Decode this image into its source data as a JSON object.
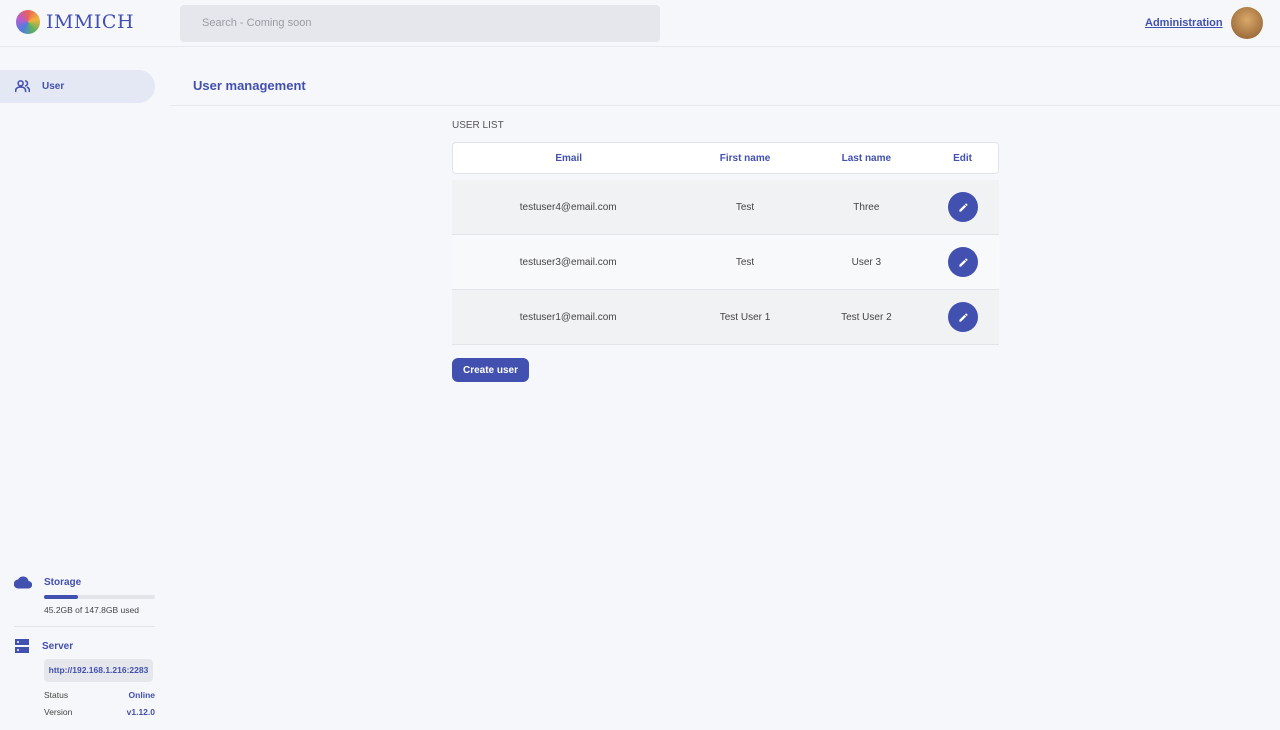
{
  "header": {
    "logo_text": "IMMICH",
    "search_placeholder": "Search - Coming soon",
    "admin_link": "Administration"
  },
  "sidebar": {
    "items": [
      {
        "label": "User",
        "icon": "users-icon"
      }
    ],
    "storage": {
      "title": "Storage",
      "usage_text": "45.2GB of 147.8GB used",
      "used_fraction": 0.306
    },
    "server": {
      "title": "Server",
      "url": "http://192.168.1.216:2283",
      "status_label": "Status",
      "status_value": "Online",
      "version_label": "Version",
      "version_value": "v1.12.0"
    }
  },
  "main": {
    "title": "User management",
    "list_label": "USER LIST",
    "columns": [
      "Email",
      "First name",
      "Last name",
      "Edit"
    ],
    "rows": [
      {
        "email": "testuser4@email.com",
        "first": "Test",
        "last": "Three"
      },
      {
        "email": "testuser3@email.com",
        "first": "Test",
        "last": "User 3"
      },
      {
        "email": "testuser1@email.com",
        "first": "Test User 1",
        "last": "Test User 2"
      }
    ],
    "create_button": "Create user"
  },
  "colors": {
    "accent": "#4250af"
  }
}
